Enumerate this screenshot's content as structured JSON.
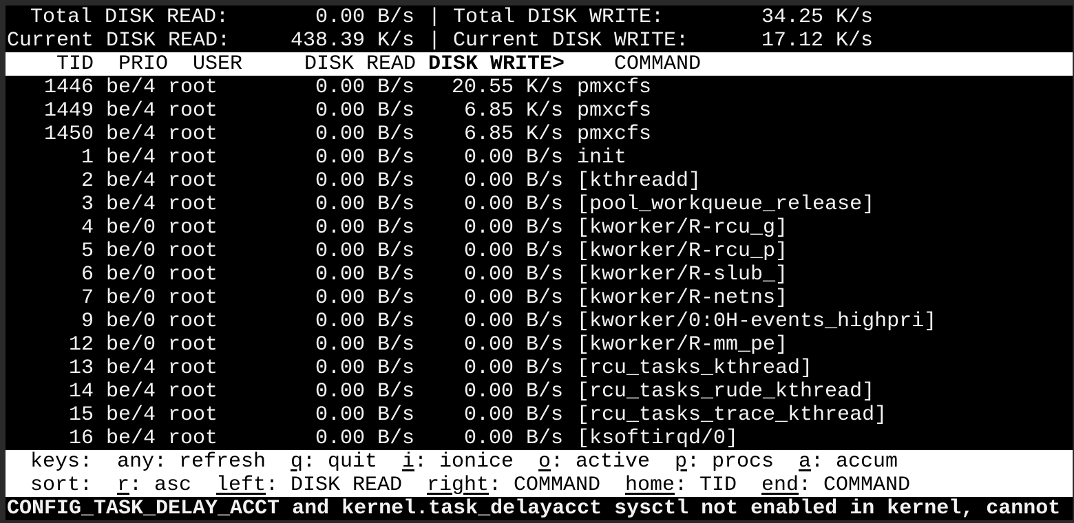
{
  "summary": {
    "total_read_label": "Total DISK READ:",
    "total_read": "0.00 B/s",
    "total_write_label": "Total DISK WRITE:",
    "total_write": "34.25 K/s",
    "current_read_label": "Current DISK READ:",
    "current_read": "438.39 K/s",
    "current_write_label": "Current DISK WRITE:",
    "current_write": "17.12 K/s",
    "separator": "|"
  },
  "columns": {
    "tid": "TID",
    "prio": "PRIO",
    "user": "USER",
    "disk_read": "DISK READ",
    "disk_write": "DISK WRITE>",
    "command": "COMMAND"
  },
  "rows": [
    {
      "tid": "1446",
      "prio": "be/4",
      "user": "root",
      "disk_read": "0.00 B/s",
      "disk_write": "20.55 K/s",
      "command": "pmxcfs"
    },
    {
      "tid": "1449",
      "prio": "be/4",
      "user": "root",
      "disk_read": "0.00 B/s",
      "disk_write": "6.85 K/s",
      "command": "pmxcfs"
    },
    {
      "tid": "1450",
      "prio": "be/4",
      "user": "root",
      "disk_read": "0.00 B/s",
      "disk_write": "6.85 K/s",
      "command": "pmxcfs"
    },
    {
      "tid": "1",
      "prio": "be/4",
      "user": "root",
      "disk_read": "0.00 B/s",
      "disk_write": "0.00 B/s",
      "command": "init"
    },
    {
      "tid": "2",
      "prio": "be/4",
      "user": "root",
      "disk_read": "0.00 B/s",
      "disk_write": "0.00 B/s",
      "command": "[kthreadd]"
    },
    {
      "tid": "3",
      "prio": "be/4",
      "user": "root",
      "disk_read": "0.00 B/s",
      "disk_write": "0.00 B/s",
      "command": "[pool_workqueue_release]"
    },
    {
      "tid": "4",
      "prio": "be/0",
      "user": "root",
      "disk_read": "0.00 B/s",
      "disk_write": "0.00 B/s",
      "command": "[kworker/R-rcu_g]"
    },
    {
      "tid": "5",
      "prio": "be/0",
      "user": "root",
      "disk_read": "0.00 B/s",
      "disk_write": "0.00 B/s",
      "command": "[kworker/R-rcu_p]"
    },
    {
      "tid": "6",
      "prio": "be/0",
      "user": "root",
      "disk_read": "0.00 B/s",
      "disk_write": "0.00 B/s",
      "command": "[kworker/R-slub_]"
    },
    {
      "tid": "7",
      "prio": "be/0",
      "user": "root",
      "disk_read": "0.00 B/s",
      "disk_write": "0.00 B/s",
      "command": "[kworker/R-netns]"
    },
    {
      "tid": "9",
      "prio": "be/0",
      "user": "root",
      "disk_read": "0.00 B/s",
      "disk_write": "0.00 B/s",
      "command": "[kworker/0:0H-events_highpri]"
    },
    {
      "tid": "12",
      "prio": "be/0",
      "user": "root",
      "disk_read": "0.00 B/s",
      "disk_write": "0.00 B/s",
      "command": "[kworker/R-mm_pe]"
    },
    {
      "tid": "13",
      "prio": "be/4",
      "user": "root",
      "disk_read": "0.00 B/s",
      "disk_write": "0.00 B/s",
      "command": "[rcu_tasks_kthread]"
    },
    {
      "tid": "14",
      "prio": "be/4",
      "user": "root",
      "disk_read": "0.00 B/s",
      "disk_write": "0.00 B/s",
      "command": "[rcu_tasks_rude_kthread]"
    },
    {
      "tid": "15",
      "prio": "be/4",
      "user": "root",
      "disk_read": "0.00 B/s",
      "disk_write": "0.00 B/s",
      "command": "[rcu_tasks_trace_kthread]"
    },
    {
      "tid": "16",
      "prio": "be/4",
      "user": "root",
      "disk_read": "0.00 B/s",
      "disk_write": "0.00 B/s",
      "command": "[ksoftirqd/0]"
    }
  ],
  "footer": {
    "keys_label": "keys:",
    "keys": [
      {
        "key": "any",
        "desc": "refresh"
      },
      {
        "key": "q",
        "desc": "quit"
      },
      {
        "key": "i",
        "desc": "ionice"
      },
      {
        "key": "o",
        "desc": "active"
      },
      {
        "key": "p",
        "desc": "procs"
      },
      {
        "key": "a",
        "desc": "accum"
      }
    ],
    "sort_label": "sort:",
    "sort": [
      {
        "key": "r",
        "desc": "asc"
      },
      {
        "key": "left",
        "desc": "DISK READ"
      },
      {
        "key": "right",
        "desc": "COMMAND"
      },
      {
        "key": "home",
        "desc": "TID"
      },
      {
        "key": "end",
        "desc": "COMMAND"
      }
    ]
  },
  "warning": "CONFIG_TASK_DELAY_ACCT and kernel.task_delayacct sysctl not enabled in kernel, cannot"
}
